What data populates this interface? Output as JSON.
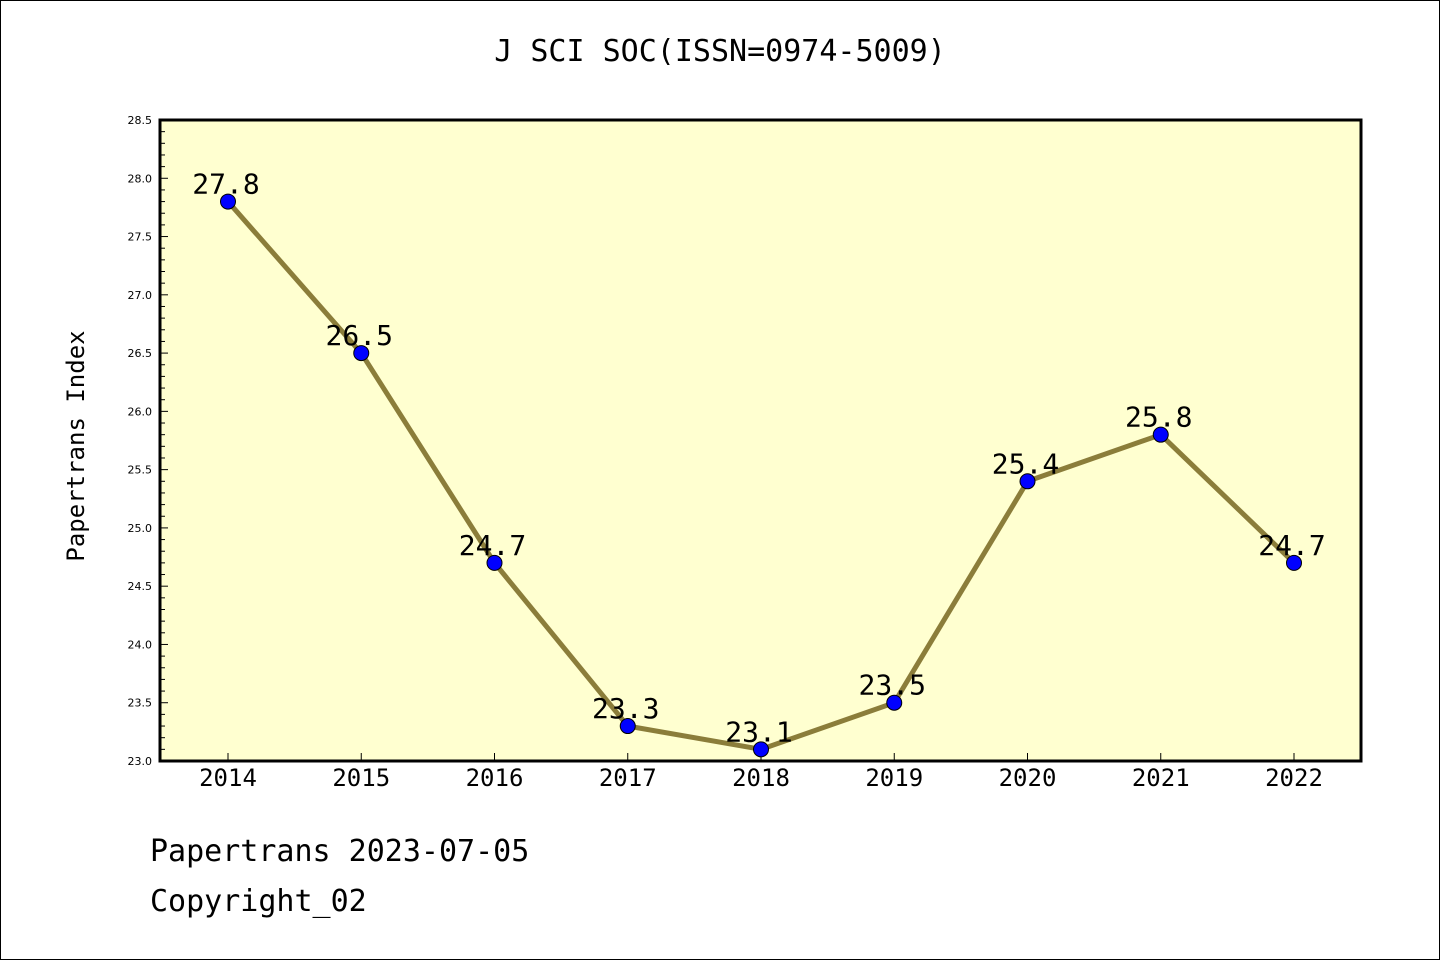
{
  "chart_data": {
    "type": "line",
    "title": "J SCI SOC(ISSN=0974-5009)",
    "xlabel": "",
    "ylabel": "Papertrans Index",
    "categories": [
      "2014",
      "2015",
      "2016",
      "2017",
      "2018",
      "2019",
      "2020",
      "2021",
      "2022"
    ],
    "values": [
      27.8,
      26.5,
      24.7,
      23.3,
      23.1,
      23.5,
      25.4,
      25.8,
      24.7
    ],
    "data_labels": [
      "27.8",
      "26.5",
      "24.7",
      "23.3",
      "23.1",
      "23.5",
      "25.4",
      "25.8",
      "24.7"
    ],
    "ylim": [
      23.0,
      28.5
    ],
    "yticks": [
      "23.0",
      "23.5",
      "24.0",
      "24.5",
      "25.0",
      "25.5",
      "26.0",
      "26.5",
      "27.0",
      "27.5",
      "28.0",
      "28.5"
    ],
    "grid": false,
    "legend": "none",
    "colors": {
      "plot_background": "#FFFFD0",
      "line": "#8B7D3A",
      "marker": "#0000FF"
    }
  },
  "footer": {
    "date_text": "Papertrans 2023-07-05",
    "copyright_text": "Copyright_02"
  }
}
